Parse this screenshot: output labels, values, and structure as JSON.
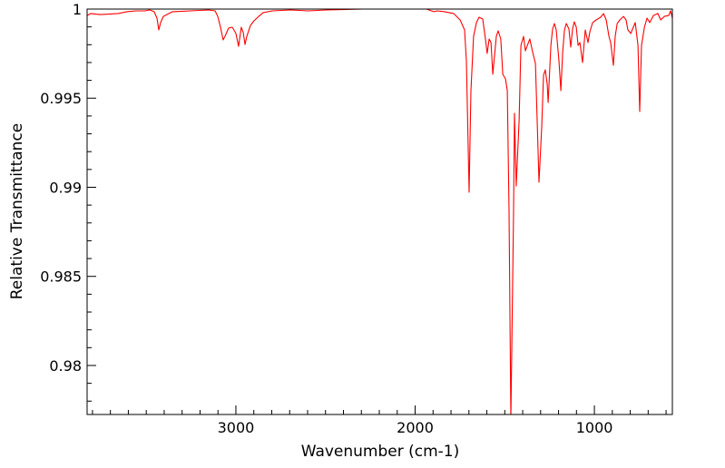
{
  "chart_data": {
    "type": "line",
    "title": "",
    "xlabel": "Wavenumber (cm-1)",
    "ylabel": "Relative Transmittance",
    "xlim": [
      3830,
      565
    ],
    "ylim": [
      0.97725,
      1.0
    ],
    "x_ticks": [
      3000,
      2000,
      1000
    ],
    "x_tick_labels": [
      "3000",
      "2000",
      "1000"
    ],
    "x_minor_step": 100,
    "y_ticks": [
      0.98,
      0.985,
      0.99,
      0.995,
      1
    ],
    "y_tick_labels": [
      "0.98",
      "0.985",
      "0.99",
      "0.995",
      "1"
    ],
    "y_minor_step": 0.001,
    "grid": false,
    "series": [
      {
        "name": "spectrum",
        "color": "#ff0000",
        "x": [
          3830,
          3810,
          3759,
          3658,
          3608,
          3557,
          3506,
          3481,
          3456,
          3440,
          3430,
          3420,
          3405,
          3354,
          3253,
          3152,
          3116,
          3101,
          3086,
          3071,
          3061,
          3041,
          3020,
          3000,
          2985,
          2970,
          2959,
          2949,
          2939,
          2919,
          2899,
          2873,
          2848,
          2797,
          2696,
          2595,
          2494,
          2291,
          2089,
          1937,
          1896,
          1876,
          1836,
          1785,
          1749,
          1724,
          1714,
          1699,
          1689,
          1674,
          1658,
          1643,
          1623,
          1608,
          1598,
          1587,
          1577,
          1567,
          1547,
          1537,
          1522,
          1511,
          1496,
          1486,
          1476,
          1466,
          1451,
          1446,
          1436,
          1420,
          1410,
          1395,
          1385,
          1370,
          1360,
          1344,
          1329,
          1319,
          1309,
          1294,
          1284,
          1274,
          1263,
          1258,
          1243,
          1233,
          1223,
          1213,
          1198,
          1187,
          1177,
          1167,
          1157,
          1142,
          1132,
          1122,
          1112,
          1101,
          1091,
          1081,
          1066,
          1051,
          1036,
          1025,
          1010,
          990,
          965,
          949,
          934,
          919,
          909,
          894,
          884,
          873,
          858,
          838,
          823,
          813,
          797,
          787,
          772,
          757,
          747,
          737,
          721,
          706,
          691,
          671,
          646,
          630,
          610,
          585,
          575,
          565
        ],
        "y": [
          0.99964,
          0.99975,
          0.99969,
          0.99975,
          0.99985,
          0.9999,
          0.9999,
          0.99995,
          0.99985,
          0.99949,
          0.99883,
          0.99924,
          0.99959,
          0.99985,
          0.9999,
          0.99995,
          0.9999,
          0.99959,
          0.99898,
          0.99827,
          0.99847,
          0.99893,
          0.99898,
          0.99863,
          0.99791,
          0.99898,
          0.99868,
          0.99801,
          0.99847,
          0.99908,
          0.99934,
          0.99959,
          0.9998,
          0.9999,
          0.99995,
          0.9999,
          0.99995,
          1.0,
          1.0,
          1.0,
          0.99985,
          0.9999,
          0.99985,
          0.99975,
          0.99939,
          0.99883,
          0.9971,
          0.98972,
          0.99542,
          0.99847,
          0.99924,
          0.99954,
          0.99944,
          0.99832,
          0.99751,
          0.99832,
          0.99812,
          0.99634,
          0.99847,
          0.99878,
          0.99832,
          0.99634,
          0.99608,
          0.99542,
          0.98865,
          0.977,
          0.98865,
          0.99415,
          0.99007,
          0.99374,
          0.99796,
          0.99847,
          0.99766,
          0.99807,
          0.99832,
          0.99756,
          0.99695,
          0.99374,
          0.99028,
          0.99338,
          0.99628,
          0.99659,
          0.99578,
          0.99476,
          0.99796,
          0.99888,
          0.99919,
          0.99883,
          0.9971,
          0.99542,
          0.99756,
          0.99883,
          0.99919,
          0.99888,
          0.99786,
          0.99888,
          0.99929,
          0.99898,
          0.99796,
          0.99812,
          0.997,
          0.99883,
          0.99812,
          0.99873,
          0.99924,
          0.99939,
          0.99954,
          0.99975,
          0.99939,
          0.99847,
          0.99812,
          0.99684,
          0.99847,
          0.99919,
          0.99939,
          0.99959,
          0.99939,
          0.99883,
          0.99863,
          0.99888,
          0.99924,
          0.99796,
          0.99425,
          0.99796,
          0.99898,
          0.99949,
          0.99924,
          0.99964,
          0.99975,
          0.99939,
          0.99959,
          0.99964,
          0.9999,
          0.99949
        ]
      }
    ]
  }
}
